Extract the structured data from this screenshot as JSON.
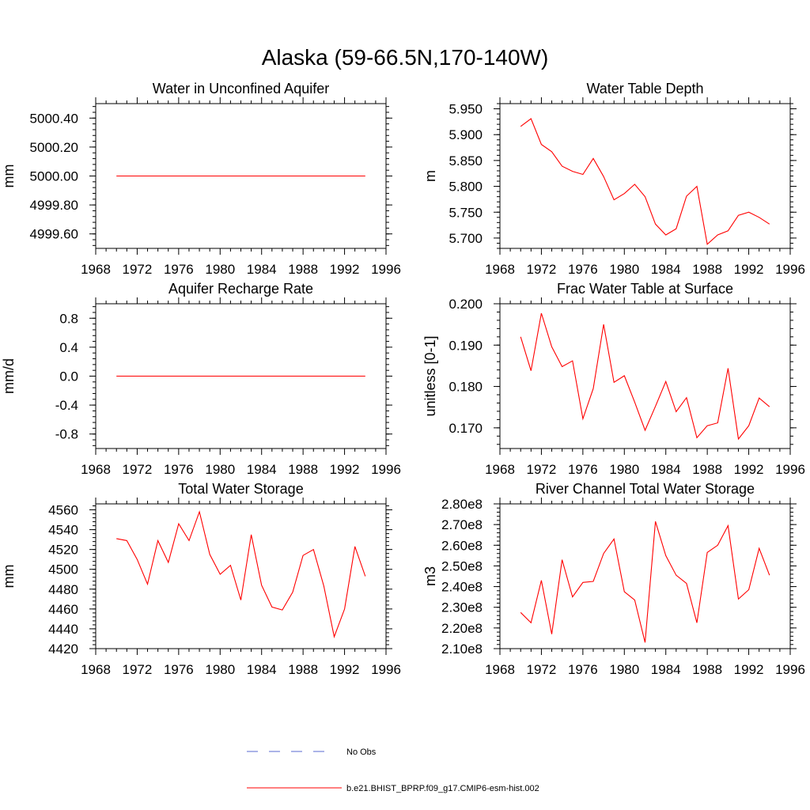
{
  "page_title": "Alaska (59-66.5N,170-140W)",
  "colors": {
    "model_line": "#ff0000",
    "obs_line": "#5a6ad0",
    "axis": "#000000"
  },
  "legend": {
    "obs_label": "No Obs",
    "model_label": "b.e21.BHIST_BPRP.f09_g17.CMIP6-esm-hist.002"
  },
  "chart_data": [
    {
      "type": "line",
      "title": "Water in Unconfined Aquifer",
      "ylabel": "mm",
      "xlim": [
        1968,
        1996
      ],
      "ylim": [
        4999.5,
        5000.5
      ],
      "yticks": [
        4999.6,
        4999.8,
        5000.0,
        5000.2,
        5000.4
      ],
      "ytick_labels": [
        "4999.60",
        "4999.80",
        "5000.00",
        "5000.20",
        "5000.40"
      ],
      "xticks": [
        1968,
        1972,
        1976,
        1980,
        1984,
        1988,
        1992,
        1996
      ],
      "x": [
        1970,
        1971,
        1972,
        1973,
        1974,
        1975,
        1976,
        1977,
        1978,
        1979,
        1980,
        1981,
        1982,
        1983,
        1984,
        1985,
        1986,
        1987,
        1988,
        1989,
        1990,
        1991,
        1992,
        1993,
        1994
      ],
      "series": [
        {
          "values": [
            5000,
            5000,
            5000,
            5000,
            5000,
            5000,
            5000,
            5000,
            5000,
            5000,
            5000,
            5000,
            5000,
            5000,
            5000,
            5000,
            5000,
            5000,
            5000,
            5000,
            5000,
            5000,
            5000,
            5000,
            5000
          ]
        }
      ]
    },
    {
      "type": "line",
      "title": "Water Table Depth",
      "ylabel": "m",
      "xlim": [
        1968,
        1996
      ],
      "ylim": [
        5.68,
        5.96
      ],
      "yticks": [
        5.7,
        5.75,
        5.8,
        5.85,
        5.9,
        5.95
      ],
      "ytick_labels": [
        "5.700",
        "5.750",
        "5.800",
        "5.850",
        "5.900",
        "5.950"
      ],
      "xticks": [
        1968,
        1972,
        1976,
        1980,
        1984,
        1988,
        1992,
        1996
      ],
      "x": [
        1970,
        1971,
        1972,
        1973,
        1974,
        1975,
        1976,
        1977,
        1978,
        1979,
        1980,
        1981,
        1982,
        1983,
        1984,
        1985,
        1986,
        1987,
        1988,
        1989,
        1990,
        1991,
        1992,
        1993,
        1994
      ],
      "series": [
        {
          "values": [
            5.916,
            5.931,
            5.881,
            5.867,
            5.839,
            5.829,
            5.823,
            5.854,
            5.819,
            5.774,
            5.786,
            5.804,
            5.78,
            5.727,
            5.706,
            5.718,
            5.781,
            5.8,
            5.688,
            5.706,
            5.714,
            5.744,
            5.75,
            5.74,
            5.727
          ]
        }
      ]
    },
    {
      "type": "line",
      "title": "Aquifer Recharge Rate",
      "ylabel": "mm/d",
      "xlim": [
        1968,
        1996
      ],
      "ylim": [
        -1.0,
        1.0
      ],
      "yticks": [
        -0.8,
        -0.4,
        0.0,
        0.4,
        0.8
      ],
      "ytick_labels": [
        "-0.8",
        "-0.4",
        "0.0",
        "0.4",
        "0.8"
      ],
      "xticks": [
        1968,
        1972,
        1976,
        1980,
        1984,
        1988,
        1992,
        1996
      ],
      "x": [
        1970,
        1971,
        1972,
        1973,
        1974,
        1975,
        1976,
        1977,
        1978,
        1979,
        1980,
        1981,
        1982,
        1983,
        1984,
        1985,
        1986,
        1987,
        1988,
        1989,
        1990,
        1991,
        1992,
        1993,
        1994
      ],
      "series": [
        {
          "values": [
            0,
            0,
            0,
            0,
            0,
            0,
            0,
            0,
            0,
            0,
            0,
            0,
            0,
            0,
            0,
            0,
            0,
            0,
            0,
            0,
            0,
            0,
            0,
            0,
            0
          ]
        }
      ]
    },
    {
      "type": "line",
      "title": "Frac Water Table at Surface",
      "ylabel": "unitless [0-1]",
      "xlim": [
        1968,
        1996
      ],
      "ylim": [
        0.165,
        0.2
      ],
      "yticks": [
        0.17,
        0.18,
        0.19,
        0.2
      ],
      "ytick_labels": [
        "0.170",
        "0.180",
        "0.190",
        "0.200"
      ],
      "xticks": [
        1968,
        1972,
        1976,
        1980,
        1984,
        1988,
        1992,
        1996
      ],
      "x": [
        1970,
        1971,
        1972,
        1973,
        1974,
        1975,
        1976,
        1977,
        1978,
        1979,
        1980,
        1981,
        1982,
        1983,
        1984,
        1985,
        1986,
        1987,
        1988,
        1989,
        1990,
        1991,
        1992,
        1993,
        1994
      ],
      "series": [
        {
          "values": [
            0.192,
            0.1838,
            0.1977,
            0.1896,
            0.1848,
            0.1862,
            0.1722,
            0.1795,
            0.195,
            0.181,
            0.1826,
            0.1762,
            0.1694,
            0.1752,
            0.1812,
            0.1739,
            0.1773,
            0.1676,
            0.1705,
            0.1712,
            0.1844,
            0.1673,
            0.1705,
            0.1772,
            0.1751
          ]
        }
      ]
    },
    {
      "type": "line",
      "title": "Total Water Storage",
      "ylabel": "mm",
      "xlim": [
        1968,
        1996
      ],
      "ylim": [
        4420,
        4566
      ],
      "yticks": [
        4420,
        4440,
        4460,
        4480,
        4500,
        4520,
        4540,
        4560
      ],
      "ytick_labels": [
        "4420",
        "4440",
        "4460",
        "4480",
        "4500",
        "4520",
        "4540",
        "4560"
      ],
      "xticks": [
        1968,
        1972,
        1976,
        1980,
        1984,
        1988,
        1992,
        1996
      ],
      "x": [
        1970,
        1971,
        1972,
        1973,
        1974,
        1975,
        1976,
        1977,
        1978,
        1979,
        1980,
        1981,
        1982,
        1983,
        1984,
        1985,
        1986,
        1987,
        1988,
        1989,
        1990,
        1991,
        1992,
        1993,
        1994
      ],
      "series": [
        {
          "values": [
            4531,
            4529,
            4510,
            4485,
            4529,
            4507,
            4546,
            4529,
            4558,
            4515,
            4495,
            4504,
            4469,
            4535,
            4484,
            4462,
            4459,
            4477,
            4514,
            4520,
            4483,
            4432,
            4460,
            4523,
            4493
          ]
        }
      ]
    },
    {
      "type": "line",
      "title": "River Channel Total Water Storage",
      "ylabel": "m3",
      "xlim": [
        1968,
        1996
      ],
      "ylim": [
        210000000.0,
        280000000.0
      ],
      "yticks": [
        210000000.0,
        220000000.0,
        230000000.0,
        240000000.0,
        250000000.0,
        260000000.0,
        270000000.0,
        280000000.0
      ],
      "ytick_labels": [
        "2.10e8",
        "2.20e8",
        "2.30e8",
        "2.40e8",
        "2.50e8",
        "2.60e8",
        "2.70e8",
        "2.80e8"
      ],
      "xticks": [
        1968,
        1972,
        1976,
        1980,
        1984,
        1988,
        1992,
        1996
      ],
      "x": [
        1970,
        1971,
        1972,
        1973,
        1974,
        1975,
        1976,
        1977,
        1978,
        1979,
        1980,
        1981,
        1982,
        1983,
        1984,
        1985,
        1986,
        1987,
        1988,
        1989,
        1990,
        1991,
        1992,
        1993,
        1994
      ],
      "series": [
        {
          "values": [
            227500000,
            222500000,
            243000000,
            217000000,
            253000000,
            235000000,
            242000000,
            242500000,
            256000000,
            263000000,
            237500000,
            233500000,
            213000000,
            271500000,
            255000000,
            245500000,
            241500000,
            222500000,
            256500000,
            260000000,
            269500000,
            234000000,
            238500000,
            258500000,
            245500000
          ]
        }
      ]
    }
  ]
}
